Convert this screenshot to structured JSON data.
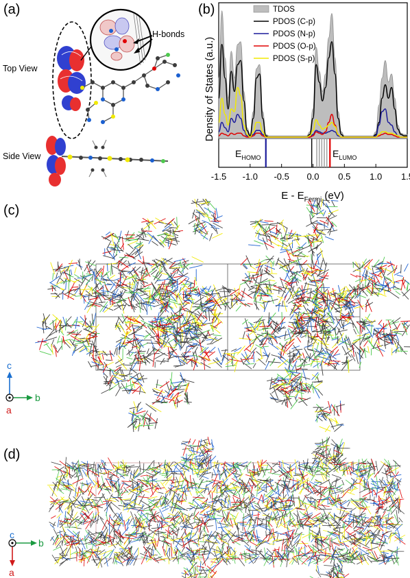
{
  "panels": {
    "a": {
      "label": "(a)",
      "top_view_label": "Top View",
      "side_view_label": "Side View",
      "hbond_label": "H-bonds"
    },
    "b": {
      "label": "(b)"
    },
    "c": {
      "label": "(c)",
      "axes": {
        "up": "c",
        "right": "b",
        "out": "a"
      }
    },
    "d": {
      "label": "(d)",
      "axes": {
        "up": "c",
        "right": "b",
        "down": "a"
      }
    }
  },
  "chart_data": {
    "type": "area",
    "title": "",
    "xlabel": "E - E",
    "xlabel_sub": "Fermi",
    "xlabel_unit": " (eV)",
    "ylabel": "Density of States (a.u.)",
    "xlim": [
      -1.5,
      1.5
    ],
    "ylim": [
      0,
      1.0
    ],
    "xticks": [
      "-1.5",
      "-1.0",
      "-0.5",
      "0.0",
      "0.5",
      "1.0",
      "1.5"
    ],
    "xtick_values": [
      -1.5,
      -1.0,
      -0.5,
      0.0,
      0.5,
      1.0,
      1.5
    ],
    "legend_position": "top-right",
    "x": [
      -1.5,
      -1.45,
      -1.4,
      -1.35,
      -1.3,
      -1.25,
      -1.2,
      -1.15,
      -1.1,
      -1.05,
      -1.0,
      -0.95,
      -0.9,
      -0.85,
      -0.8,
      -0.75,
      -0.7,
      -0.65,
      -0.6,
      -0.55,
      -0.5,
      -0.45,
      -0.4,
      -0.35,
      -0.3,
      -0.25,
      -0.2,
      -0.15,
      -0.1,
      -0.05,
      0.0,
      0.05,
      0.1,
      0.15,
      0.2,
      0.25,
      0.3,
      0.35,
      0.4,
      0.45,
      0.5,
      0.55,
      0.6,
      0.65,
      0.7,
      0.75,
      0.8,
      0.85,
      0.9,
      0.95,
      1.0,
      1.05,
      1.1,
      1.15,
      1.2,
      1.25,
      1.3,
      1.35,
      1.4,
      1.45,
      1.5
    ],
    "series": [
      {
        "name": "TDOS",
        "color": "#bdbdbd",
        "values": [
          0.45,
          0.95,
          0.6,
          0.3,
          0.65,
          0.45,
          0.7,
          0.72,
          0.35,
          0.08,
          0.03,
          0.2,
          0.52,
          0.55,
          0.2,
          0.03,
          0.02,
          0.02,
          0.02,
          0.02,
          0.02,
          0.02,
          0.02,
          0.02,
          0.02,
          0.02,
          0.02,
          0.02,
          0.02,
          0.05,
          0.22,
          0.68,
          0.5,
          0.35,
          0.48,
          0.75,
          0.93,
          0.6,
          0.2,
          0.05,
          0.02,
          0.02,
          0.02,
          0.02,
          0.02,
          0.02,
          0.02,
          0.02,
          0.02,
          0.02,
          0.05,
          0.25,
          0.45,
          0.58,
          0.42,
          0.48,
          0.3,
          0.1,
          0.04,
          0.03,
          0.03
        ]
      },
      {
        "name": "PDOS (C-p)",
        "color": "#000000",
        "values": [
          0.3,
          0.7,
          0.45,
          0.22,
          0.5,
          0.35,
          0.55,
          0.58,
          0.28,
          0.06,
          0.02,
          0.15,
          0.45,
          0.48,
          0.15,
          0.02,
          0.01,
          0.01,
          0.01,
          0.01,
          0.01,
          0.01,
          0.01,
          0.01,
          0.01,
          0.01,
          0.01,
          0.01,
          0.01,
          0.03,
          0.15,
          0.55,
          0.42,
          0.28,
          0.38,
          0.6,
          0.72,
          0.48,
          0.15,
          0.03,
          0.01,
          0.01,
          0.01,
          0.01,
          0.01,
          0.01,
          0.01,
          0.01,
          0.01,
          0.01,
          0.03,
          0.12,
          0.3,
          0.4,
          0.3,
          0.38,
          0.22,
          0.07,
          0.03,
          0.02,
          0.02
        ]
      },
      {
        "name": "PDOS (N-p)",
        "color": "#1a1a9a",
        "values": [
          0.05,
          0.12,
          0.08,
          0.05,
          0.15,
          0.12,
          0.18,
          0.15,
          0.06,
          0.02,
          0.01,
          0.03,
          0.06,
          0.06,
          0.03,
          0.01,
          0.01,
          0.01,
          0.01,
          0.01,
          0.01,
          0.01,
          0.01,
          0.01,
          0.01,
          0.01,
          0.01,
          0.01,
          0.01,
          0.01,
          0.03,
          0.06,
          0.05,
          0.04,
          0.04,
          0.05,
          0.06,
          0.05,
          0.02,
          0.01,
          0.01,
          0.01,
          0.01,
          0.01,
          0.01,
          0.01,
          0.01,
          0.01,
          0.01,
          0.01,
          0.02,
          0.1,
          0.2,
          0.22,
          0.12,
          0.1,
          0.05,
          0.02,
          0.01,
          0.01,
          0.01
        ]
      },
      {
        "name": "PDOS (O-p)",
        "color": "#e00000",
        "values": [
          0.02,
          0.04,
          0.03,
          0.02,
          0.04,
          0.03,
          0.04,
          0.04,
          0.02,
          0.01,
          0.01,
          0.02,
          0.04,
          0.04,
          0.02,
          0.01,
          0.01,
          0.01,
          0.01,
          0.01,
          0.01,
          0.01,
          0.01,
          0.01,
          0.01,
          0.01,
          0.01,
          0.01,
          0.01,
          0.01,
          0.02,
          0.05,
          0.04,
          0.03,
          0.05,
          0.12,
          0.18,
          0.1,
          0.03,
          0.01,
          0.01,
          0.01,
          0.01,
          0.01,
          0.01,
          0.01,
          0.01,
          0.01,
          0.01,
          0.01,
          0.01,
          0.02,
          0.03,
          0.04,
          0.03,
          0.03,
          0.02,
          0.01,
          0.01,
          0.01,
          0.01
        ]
      },
      {
        "name": "PDOS (S-p)",
        "color": "#f2ea00",
        "values": [
          0.12,
          0.3,
          0.18,
          0.1,
          0.22,
          0.2,
          0.38,
          0.32,
          0.1,
          0.03,
          0.01,
          0.05,
          0.12,
          0.12,
          0.05,
          0.01,
          0.01,
          0.01,
          0.01,
          0.01,
          0.01,
          0.01,
          0.01,
          0.01,
          0.01,
          0.01,
          0.01,
          0.01,
          0.01,
          0.02,
          0.06,
          0.14,
          0.1,
          0.07,
          0.08,
          0.1,
          0.12,
          0.09,
          0.03,
          0.01,
          0.01,
          0.01,
          0.01,
          0.01,
          0.01,
          0.01,
          0.01,
          0.01,
          0.01,
          0.01,
          0.01,
          0.03,
          0.05,
          0.05,
          0.04,
          0.04,
          0.03,
          0.02,
          0.01,
          0.01,
          0.01
        ]
      }
    ],
    "level_labels": {
      "homo": "E",
      "homo_sub": "HOMO",
      "lumo": "E",
      "lumo_sub": "LUMO"
    },
    "levels": [
      {
        "energy": -0.75,
        "color": "#1a1a9a",
        "kind": "homo"
      },
      {
        "energy": -0.02,
        "color": "#000000",
        "kind": "other"
      },
      {
        "energy": 0.06,
        "color": "#9a9a9a",
        "kind": "other"
      },
      {
        "energy": 0.1,
        "color": "#9a9a9a",
        "kind": "other"
      },
      {
        "energy": 0.14,
        "color": "#9a9a9a",
        "kind": "other"
      },
      {
        "energy": 0.18,
        "color": "#9a9a9a",
        "kind": "other"
      },
      {
        "energy": 0.22,
        "color": "#9a9a9a",
        "kind": "other"
      },
      {
        "energy": 0.27,
        "color": "#e00000",
        "kind": "lumo"
      }
    ]
  },
  "colors": {
    "carbon": "#3c3c3c",
    "nitrogen": "#1a5fd0",
    "sulfur": "#f2ea00",
    "oxygen": "#e00000",
    "fluorine": "#4dc94d",
    "orbital_pos": "#e83030",
    "orbital_neg": "#3040d0",
    "axis_c": "#1a6fd0",
    "axis_b": "#1a9a40",
    "axis_a": "#d01a1a"
  }
}
